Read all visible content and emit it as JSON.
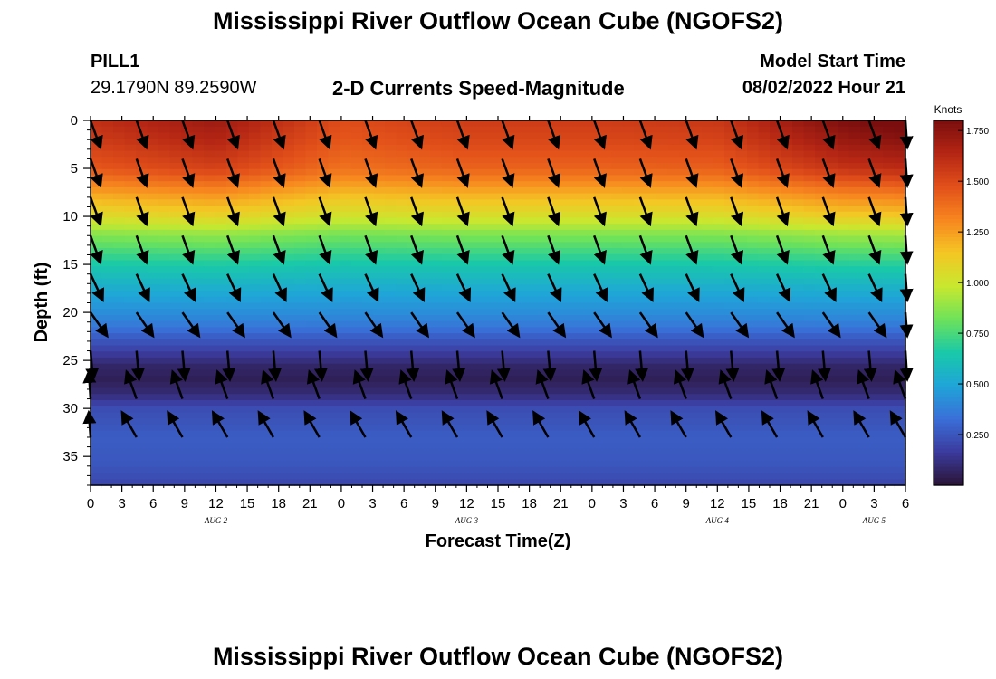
{
  "page": {
    "title": "Mississippi River Outflow Ocean Cube (NGOFS2)",
    "station": "PILL1",
    "coords": "29.1790N  89.2590W",
    "subtitle": "2-D Currents Speed-Magnitude",
    "start_label": "Model Start Time",
    "start_value": "08/02/2022 Hour 21",
    "footer_title": "Mississippi River Outflow Ocean Cube (NGOFS2)"
  },
  "chart_data": {
    "type": "heatmap",
    "title": "2-D Currents Speed-Magnitude",
    "xlabel": "Forecast Time(Z)",
    "ylabel": "Depth (ft)",
    "x_tick_labels": [
      "0",
      "3",
      "6",
      "9",
      "12",
      "15",
      "18",
      "21",
      "0",
      "3",
      "6",
      "9",
      "12",
      "15",
      "18",
      "21",
      "0",
      "3",
      "6",
      "9",
      "12",
      "15",
      "18",
      "21",
      "0",
      "3",
      "6"
    ],
    "x_range_hours": [
      0,
      78
    ],
    "date_labels": [
      {
        "label": "AUG 2",
        "hour": 12
      },
      {
        "label": "AUG 3",
        "hour": 36
      },
      {
        "label": "AUG 4",
        "hour": 60
      },
      {
        "label": "AUG 5",
        "hour": 75
      }
    ],
    "y_ticks": [
      0,
      5,
      10,
      15,
      20,
      25,
      30,
      35
    ],
    "y_range": [
      0,
      38
    ],
    "y_inverted": true,
    "colorbar": {
      "title": "Knots",
      "ticks": [
        "1.750",
        "1.500",
        "1.250",
        "1.000",
        "0.750",
        "0.500",
        "0.250"
      ],
      "tick_values": [
        1.75,
        1.5,
        1.25,
        1.0,
        0.75,
        0.5,
        0.25
      ],
      "range": [
        0,
        1.8
      ],
      "colors": [
        "#2a1436",
        "#3b3b9e",
        "#3a6fd8",
        "#1fa5d8",
        "#19c9a8",
        "#6ee25a",
        "#c8e82f",
        "#f4c624",
        "#f7861f",
        "#e2501a",
        "#b52614",
        "#7a0e0e"
      ]
    },
    "speed_profile": [
      {
        "depth": 0,
        "speed": 1.6
      },
      {
        "depth": 2,
        "speed": 1.55
      },
      {
        "depth": 5,
        "speed": 1.45
      },
      {
        "depth": 8,
        "speed": 1.2
      },
      {
        "depth": 10,
        "speed": 1.05
      },
      {
        "depth": 12,
        "speed": 0.85
      },
      {
        "depth": 15,
        "speed": 0.65
      },
      {
        "depth": 18,
        "speed": 0.5
      },
      {
        "depth": 21,
        "speed": 0.38
      },
      {
        "depth": 24,
        "speed": 0.18
      },
      {
        "depth": 25.5,
        "speed": 0.08
      },
      {
        "depth": 27,
        "speed": 0.05
      },
      {
        "depth": 28.5,
        "speed": 0.1
      },
      {
        "depth": 30,
        "speed": 0.22
      },
      {
        "depth": 33,
        "speed": 0.27
      },
      {
        "depth": 36,
        "speed": 0.25
      },
      {
        "depth": 38,
        "speed": 0.2
      }
    ],
    "surface_variation": [
      {
        "hour": 0,
        "factor": 1.0
      },
      {
        "hour": 12,
        "factor": 1.07
      },
      {
        "hour": 24,
        "factor": 0.93
      },
      {
        "hour": 36,
        "factor": 0.97
      },
      {
        "hour": 48,
        "factor": 0.97
      },
      {
        "hour": 60,
        "factor": 0.98
      },
      {
        "hour": 72,
        "factor": 1.12
      },
      {
        "hour": 78,
        "factor": 1.15
      }
    ],
    "arrow_hours": [
      0,
      4.4,
      8.8,
      13.1,
      17.5,
      21.9,
      26.3,
      30.7,
      35.1,
      39.4,
      43.8,
      48.2,
      52.6,
      57,
      61.3,
      65.7,
      70.1,
      74.5,
      78
    ],
    "arrow_depths": [
      0,
      4,
      8,
      12,
      16,
      20,
      24,
      29,
      33
    ],
    "arrow_directions": [
      {
        "depth": 0,
        "angle_deg": 160
      },
      {
        "depth": 4,
        "angle_deg": 160
      },
      {
        "depth": 8,
        "angle_deg": 160
      },
      {
        "depth": 12,
        "angle_deg": 160
      },
      {
        "depth": 16,
        "angle_deg": 155
      },
      {
        "depth": 20,
        "angle_deg": 145
      },
      {
        "depth": 24,
        "angle_deg": 175
      },
      {
        "depth": 29,
        "angle_deg": -20
      },
      {
        "depth": 33,
        "angle_deg": -30
      }
    ]
  }
}
